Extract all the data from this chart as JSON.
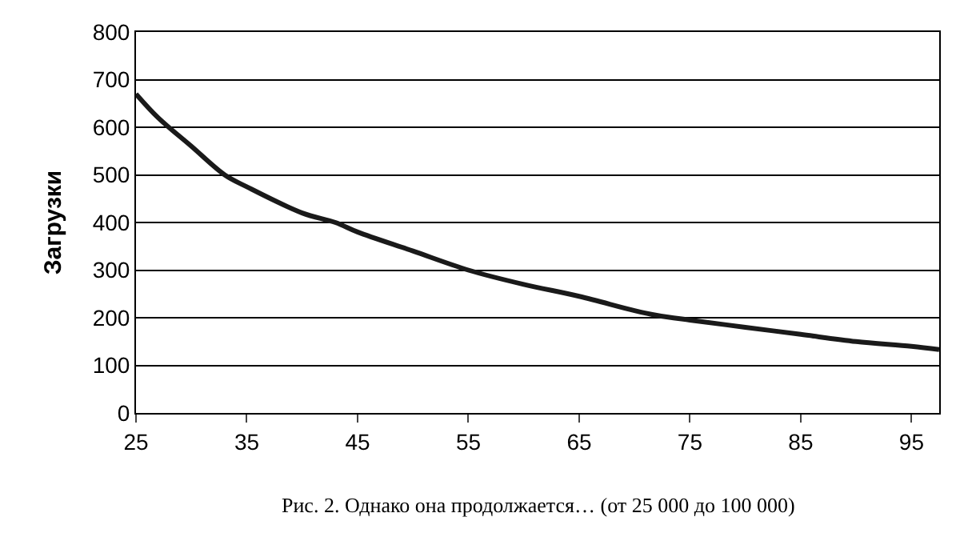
{
  "chart_data": {
    "type": "line",
    "ylabel": "Загрузки",
    "x": [
      25,
      27,
      30,
      33,
      35,
      40,
      43,
      45,
      50,
      55,
      60,
      65,
      70,
      72,
      75,
      80,
      85,
      90,
      95,
      97.5
    ],
    "series": [
      {
        "color": "#1a1a1a",
        "values": [
          670,
          620,
          560,
          500,
          475,
          420,
          400,
          380,
          340,
          300,
          270,
          245,
          215,
          205,
          195,
          180,
          165,
          150,
          140,
          133
        ]
      }
    ],
    "xlim": [
      25,
      97.5
    ],
    "xticks": [
      25,
      35,
      45,
      55,
      65,
      75,
      85,
      95
    ],
    "ylim": [
      0,
      800
    ],
    "yticks": [
      0,
      100,
      200,
      300,
      400,
      500,
      600,
      700,
      800
    ],
    "grid": "y",
    "legend": false,
    "marker": "none",
    "line_style": "solid",
    "annotations": [
      "Рис. 2. Однако она продолжается… (от 25 000 до 100 000)"
    ]
  }
}
